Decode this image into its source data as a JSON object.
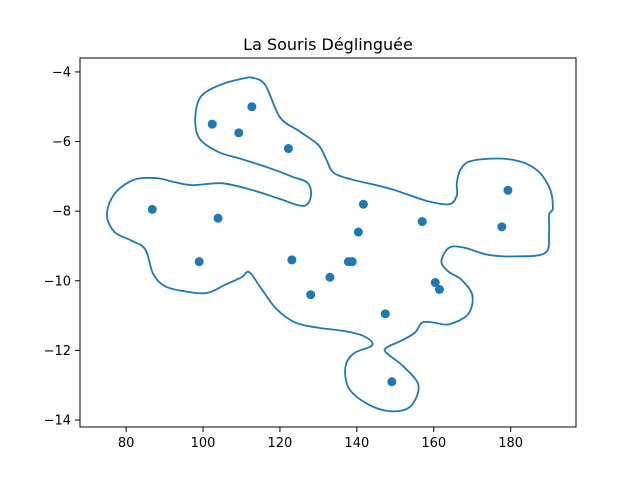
{
  "chart_data": {
    "type": "scatter",
    "title": "La Souris Déglinguée",
    "xlabel": "",
    "ylabel": "",
    "xlim": [
      68,
      197
    ],
    "ylim": [
      -14.2,
      -3.6
    ],
    "xticks": [
      80,
      100,
      120,
      140,
      160,
      180
    ],
    "yticks": [
      -14,
      -12,
      -10,
      -8,
      -6,
      -4
    ],
    "grid": false,
    "colors": {
      "marker": "#1f77b4",
      "curve": "#1f77b4"
    },
    "points": [
      {
        "x": 112.7,
        "y": -5.0
      },
      {
        "x": 102.4,
        "y": -5.5
      },
      {
        "x": 109.3,
        "y": -5.75
      },
      {
        "x": 122.2,
        "y": -6.2
      },
      {
        "x": 86.8,
        "y": -7.95
      },
      {
        "x": 103.9,
        "y": -8.2
      },
      {
        "x": 141.7,
        "y": -7.8
      },
      {
        "x": 140.4,
        "y": -8.6
      },
      {
        "x": 157.0,
        "y": -8.3
      },
      {
        "x": 179.3,
        "y": -7.4
      },
      {
        "x": 177.7,
        "y": -8.45
      },
      {
        "x": 99.0,
        "y": -9.45
      },
      {
        "x": 123.1,
        "y": -9.4
      },
      {
        "x": 137.8,
        "y": -9.45
      },
      {
        "x": 138.8,
        "y": -9.45
      },
      {
        "x": 133.0,
        "y": -9.9
      },
      {
        "x": 128.0,
        "y": -10.4
      },
      {
        "x": 160.4,
        "y": -10.05
      },
      {
        "x": 161.5,
        "y": -10.25
      },
      {
        "x": 147.4,
        "y": -10.95
      },
      {
        "x": 149.1,
        "y": -12.9
      }
    ],
    "curve": [
      [
        112.0,
        -4.15
      ],
      [
        105.0,
        -4.35
      ],
      [
        99.5,
        -4.7
      ],
      [
        98.0,
        -5.3
      ],
      [
        99.0,
        -5.9
      ],
      [
        104.0,
        -6.3
      ],
      [
        110.0,
        -6.5
      ],
      [
        117.0,
        -6.75
      ],
      [
        123.0,
        -7.0
      ],
      [
        127.3,
        -7.2
      ],
      [
        128.0,
        -7.6
      ],
      [
        126.0,
        -7.85
      ],
      [
        120.0,
        -7.65
      ],
      [
        113.0,
        -7.4
      ],
      [
        105.0,
        -7.2
      ],
      [
        97.0,
        -7.25
      ],
      [
        92.0,
        -7.15
      ],
      [
        88.0,
        -7.05
      ],
      [
        82.0,
        -7.1
      ],
      [
        77.0,
        -7.5
      ],
      [
        75.0,
        -8.1
      ],
      [
        77.0,
        -8.6
      ],
      [
        81.5,
        -8.85
      ],
      [
        85.0,
        -9.1
      ],
      [
        87.0,
        -9.8
      ],
      [
        90.0,
        -10.15
      ],
      [
        95.0,
        -10.3
      ],
      [
        101.0,
        -10.35
      ],
      [
        106.0,
        -10.1
      ],
      [
        110.0,
        -9.9
      ],
      [
        112.0,
        -9.75
      ],
      [
        115.0,
        -10.2
      ],
      [
        119.0,
        -10.8
      ],
      [
        124.0,
        -11.2
      ],
      [
        130.0,
        -11.35
      ],
      [
        137.0,
        -11.45
      ],
      [
        142.0,
        -11.6
      ],
      [
        144.0,
        -11.85
      ],
      [
        139.0,
        -12.1
      ],
      [
        137.0,
        -12.5
      ],
      [
        138.0,
        -13.1
      ],
      [
        143.0,
        -13.55
      ],
      [
        149.0,
        -13.75
      ],
      [
        154.0,
        -13.6
      ],
      [
        156.0,
        -13.0
      ],
      [
        152.0,
        -12.45
      ],
      [
        147.5,
        -12.05
      ],
      [
        148.0,
        -11.9
      ],
      [
        151.0,
        -11.75
      ],
      [
        155.0,
        -11.5
      ],
      [
        157.0,
        -11.2
      ],
      [
        160.0,
        -11.2
      ],
      [
        164.0,
        -11.25
      ],
      [
        169.0,
        -10.95
      ],
      [
        170.0,
        -10.4
      ],
      [
        167.0,
        -9.95
      ],
      [
        164.0,
        -9.75
      ],
      [
        162.0,
        -9.45
      ],
      [
        164.0,
        -9.05
      ],
      [
        168.0,
        -9.05
      ],
      [
        174.0,
        -9.25
      ],
      [
        181.0,
        -9.3
      ],
      [
        189.0,
        -9.2
      ],
      [
        190.0,
        -8.6
      ],
      [
        190.0,
        -8.1
      ],
      [
        191.0,
        -7.9
      ],
      [
        190.0,
        -7.3
      ],
      [
        186.0,
        -6.75
      ],
      [
        179.0,
        -6.5
      ],
      [
        170.0,
        -6.55
      ],
      [
        167.0,
        -6.8
      ],
      [
        166.0,
        -7.2
      ],
      [
        166.0,
        -7.55
      ],
      [
        164.0,
        -7.8
      ],
      [
        158.0,
        -7.7
      ],
      [
        150.0,
        -7.4
      ],
      [
        145.0,
        -7.25
      ],
      [
        139.0,
        -7.1
      ],
      [
        134.0,
        -6.9
      ],
      [
        132.0,
        -6.5
      ],
      [
        130.0,
        -6.1
      ],
      [
        125.0,
        -5.7
      ],
      [
        120.0,
        -5.3
      ],
      [
        116.0,
        -4.35
      ],
      [
        112.0,
        -4.15
      ]
    ]
  }
}
